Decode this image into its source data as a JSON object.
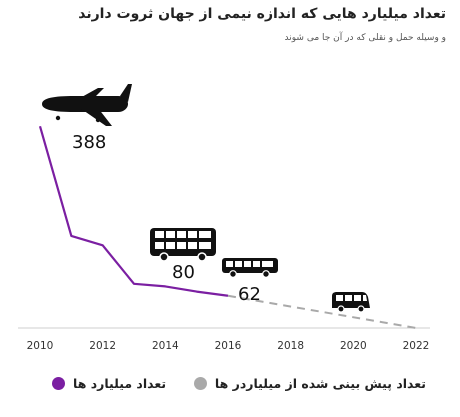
{
  "chart_data": {
    "type": "line",
    "title": "تعداد میلیارد هایی که اندازه نیمی از جهان ثروت دارند",
    "subtitle": "و وسیله حمل و نقلی که در آن جا می شوند",
    "x_ticks": [
      2010,
      2012,
      2014,
      2016,
      2018,
      2020,
      2022
    ],
    "xlim": [
      2010,
      2022
    ],
    "ylim": [
      0,
      400
    ],
    "grid": false,
    "legend_position": "bottom",
    "series": [
      {
        "name": "تعداد میلیارد ها",
        "color": "#7b1fa2",
        "style": "solid",
        "x": [
          2010,
          2011,
          2012,
          2013,
          2014,
          2015,
          2016
        ],
        "y": [
          388,
          177,
          159,
          85,
          80,
          70,
          62
        ]
      },
      {
        "name": "تعداد پیش بینی شده از میلیاردر ها",
        "color": "#a9a9a9",
        "style": "dashed",
        "x": [
          2016,
          2022
        ],
        "y": [
          62,
          0
        ]
      }
    ],
    "annotations": [
      {
        "label": "388",
        "icon": "airplane-icon",
        "x": 2010,
        "y": 388
      },
      {
        "label": "80",
        "icon": "double-decker-bus-icon",
        "x": 2014,
        "y": 80
      },
      {
        "label": "62",
        "icon": "bus-icon",
        "x": 2016,
        "y": 62
      },
      {
        "icon": "minibus-icon",
        "x": 2020
      }
    ]
  }
}
